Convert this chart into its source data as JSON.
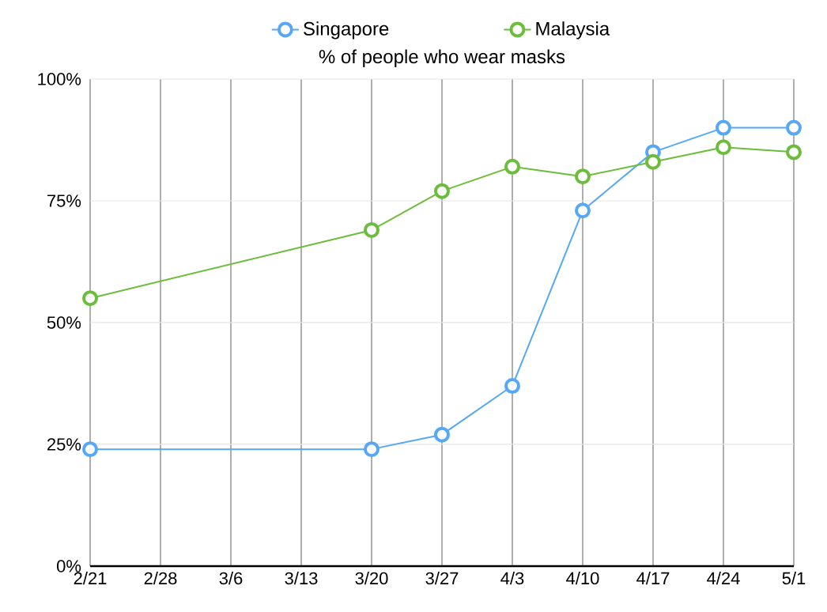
{
  "chart_data": {
    "type": "line",
    "title": "% of people who wear masks",
    "categories": [
      "2/21",
      "2/28",
      "3/6",
      "3/13",
      "3/20",
      "3/27",
      "4/3",
      "4/10",
      "4/17",
      "4/24",
      "5/1"
    ],
    "series": [
      {
        "name": "Singapore",
        "color": "#56a8f7",
        "values": [
          24,
          null,
          null,
          null,
          24,
          27,
          37,
          73,
          85,
          90,
          90
        ]
      },
      {
        "name": "Malaysia",
        "color": "#6cbd3b",
        "values": [
          55,
          null,
          null,
          null,
          69,
          77,
          82,
          80,
          83,
          86,
          85
        ]
      }
    ],
    "ylim": [
      0,
      100
    ],
    "yticks": [
      {
        "value": 0,
        "label": "0%"
      },
      {
        "value": 25,
        "label": "25%"
      },
      {
        "value": 50,
        "label": "50%"
      },
      {
        "value": 75,
        "label": "75%"
      },
      {
        "value": 100,
        "label": "100%"
      }
    ],
    "grid": true,
    "legend": "top",
    "marker": "circle",
    "line_style": "solid"
  }
}
